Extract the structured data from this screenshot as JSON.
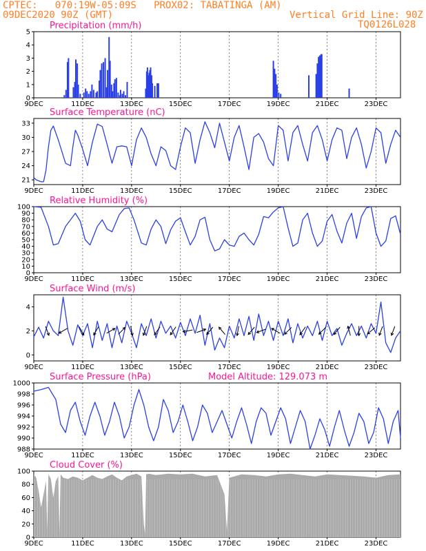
{
  "header": {
    "line1_left": "CPTEC:   070:19W-05:09S   PROX02: TABATINGA (AM)",
    "line2_left": "09DEC2020 90Z (GMT)",
    "line2_right": "Vertical Grid Line: 90Z",
    "line3_right": "TQ0126L028"
  },
  "colors": {
    "header": "#ff7f24",
    "title": "#ff1493",
    "line": "#2a3fe6",
    "bar": "#2a3fe6",
    "cloud": "#aaaaaa"
  },
  "x_tick_labels": [
    "9DEC",
    "11DEC",
    "13DEC",
    "15DEC",
    "17DEC",
    "19DEC",
    "21DEC",
    "23DEC"
  ],
  "chart_data": [
    {
      "type": "bar",
      "title": "Precipitation (mm/h)",
      "ylim": [
        0,
        5
      ],
      "yticks": [
        "0",
        "1",
        "2",
        "3",
        "4",
        "5"
      ],
      "x_days": [
        1.25,
        1.32,
        1.38,
        1.42,
        1.62,
        1.68,
        1.72,
        1.78,
        1.82,
        1.9,
        2.05,
        2.12,
        2.18,
        2.25,
        2.32,
        2.38,
        2.45,
        2.55,
        2.6,
        2.68,
        2.72,
        2.78,
        2.85,
        2.92,
        2.98,
        3.02,
        3.08,
        3.12,
        3.18,
        3.22,
        3.28,
        3.32,
        3.38,
        3.45,
        3.52,
        3.55,
        3.62,
        3.68,
        3.75,
        3.82,
        4.58,
        4.62,
        4.65,
        4.68,
        4.72,
        4.75,
        4.78,
        4.82,
        4.85,
        4.95,
        5.05,
        5.1,
        9.8,
        9.85,
        9.9,
        9.95,
        10.02,
        10.1,
        11.25,
        11.55,
        11.6,
        11.65,
        11.7,
        11.75,
        11.78,
        12.9
      ],
      "values": [
        0.2,
        0.6,
        2.7,
        3.0,
        0.8,
        1.2,
        2.9,
        2.6,
        1.0,
        0.3,
        0.4,
        0.7,
        0.5,
        0.3,
        0.5,
        1.0,
        0.6,
        0.4,
        0.5,
        1.3,
        2.1,
        2.6,
        2.7,
        3.0,
        0.8,
        2.1,
        4.6,
        2.8,
        1.0,
        0.5,
        1.1,
        1.4,
        1.5,
        0.4,
        0.2,
        0.6,
        0.3,
        0.5,
        0.2,
        1.2,
        0.7,
        2.0,
        2.3,
        1.7,
        1.9,
        2.1,
        2.3,
        1.7,
        1.1,
        0.9,
        1.1,
        1.1,
        2.8,
        2.2,
        1.8,
        1.0,
        0.4,
        0.3,
        1.7,
        1.8,
        2.6,
        3.1,
        3.2,
        3.3,
        3.3,
        0.7
      ]
    },
    {
      "type": "line",
      "title": "Surface Temperature (nC)",
      "ylim": [
        20,
        34
      ],
      "yticks": [
        "21",
        "24",
        "27",
        "30",
        "33"
      ],
      "x": [
        0,
        0.1,
        0.2,
        0.3,
        0.4,
        0.5,
        0.6,
        0.7,
        0.8,
        1.0,
        1.3,
        1.5,
        1.6,
        1.7,
        1.8,
        2.0,
        2.2,
        2.4,
        2.6,
        2.8,
        3.0,
        3.2,
        3.4,
        3.6,
        3.8,
        4.0,
        4.2,
        4.4,
        4.6,
        4.8,
        5.0,
        5.2,
        5.4,
        5.6,
        5.8,
        6.0,
        6.2,
        6.4,
        6.6,
        6.8,
        7.0,
        7.2,
        7.4,
        7.6,
        7.8,
        8.0,
        8.2,
        8.4,
        8.6,
        8.8,
        9.0,
        9.2,
        9.4,
        9.6,
        9.8,
        10.0,
        10.2,
        10.4,
        10.6,
        10.8,
        11.0,
        11.2,
        11.4,
        11.6,
        11.8,
        12.0,
        12.2,
        12.4,
        12.6,
        12.8,
        13.0,
        13.2,
        13.4,
        13.6,
        13.8,
        14.0,
        14.2,
        14.4,
        14.6,
        14.8,
        15.0
      ],
      "y": [
        21.5,
        21.0,
        20.8,
        20.6,
        20.6,
        23.0,
        28.0,
        31.5,
        32.4,
        29.5,
        24.5,
        24.0,
        28.0,
        31.5,
        30.5,
        27.5,
        24.0,
        29.0,
        32.8,
        32.3,
        28.5,
        24.5,
        28.0,
        28.2,
        28.0,
        24.0,
        29.5,
        32.0,
        30.0,
        26.5,
        24.0,
        28.0,
        27.2,
        24.0,
        23.2,
        28.0,
        32.0,
        31.0,
        24.5,
        29.5,
        33.3,
        31.0,
        27.8,
        33.0,
        29.0,
        25.0,
        30.0,
        32.5,
        28.0,
        23.2,
        30.0,
        30.8,
        29.0,
        25.5,
        24.0,
        32.5,
        31.5,
        25.0,
        31.0,
        32.5,
        28.5,
        25.0,
        31.0,
        32.5,
        29.5,
        25.0,
        29.5,
        32.0,
        31.5,
        25.5,
        30.0,
        32.0,
        28.5,
        23.5,
        27.0,
        32.0,
        31.0,
        24.5,
        28.5,
        31.5,
        30.0
      ]
    },
    {
      "type": "line",
      "title": "Relative Humidity (%)",
      "ylim": [
        0,
        100
      ],
      "yticks": [
        "0",
        "10",
        "20",
        "30",
        "40",
        "50",
        "60",
        "70",
        "80",
        "90",
        "100"
      ],
      "x": [
        0,
        0.3,
        0.6,
        0.8,
        1.0,
        1.3,
        1.5,
        1.7,
        1.9,
        2.1,
        2.3,
        2.6,
        2.8,
        3.0,
        3.2,
        3.5,
        3.7,
        3.9,
        4.1,
        4.4,
        4.6,
        4.8,
        5.0,
        5.2,
        5.4,
        5.6,
        5.8,
        6.0,
        6.2,
        6.4,
        6.6,
        6.8,
        7.0,
        7.2,
        7.4,
        7.6,
        7.8,
        8.0,
        8.2,
        8.4,
        8.6,
        8.8,
        9.0,
        9.2,
        9.4,
        9.6,
        9.8,
        10.0,
        10.2,
        10.4,
        10.6,
        10.8,
        11.0,
        11.2,
        11.4,
        11.6,
        11.8,
        12.0,
        12.2,
        12.4,
        12.6,
        12.8,
        13.0,
        13.2,
        13.4,
        13.6,
        13.8,
        14.0,
        14.2,
        14.4,
        14.6,
        14.8,
        15.0
      ],
      "y": [
        100,
        99,
        70,
        42,
        44,
        70,
        80,
        90,
        78,
        50,
        42,
        70,
        80,
        66,
        62,
        88,
        97,
        98,
        80,
        45,
        42,
        66,
        80,
        70,
        44,
        65,
        78,
        83,
        62,
        42,
        55,
        80,
        84,
        50,
        33,
        36,
        50,
        42,
        40,
        55,
        60,
        50,
        42,
        58,
        85,
        83,
        92,
        98,
        100,
        68,
        40,
        45,
        80,
        90,
        60,
        40,
        48,
        78,
        88,
        63,
        45,
        75,
        90,
        52,
        85,
        98,
        100,
        60,
        40,
        48,
        82,
        86,
        58
      ]
    },
    {
      "type": "line",
      "title": "Surface Wind (m/s)",
      "ylim": [
        -0.5,
        5
      ],
      "yticks": [
        "0",
        "2",
        "4"
      ],
      "x": [
        0,
        0.2,
        0.4,
        0.6,
        0.8,
        1.0,
        1.2,
        1.4,
        1.6,
        1.8,
        2.0,
        2.2,
        2.4,
        2.6,
        2.8,
        3.0,
        3.2,
        3.4,
        3.6,
        3.8,
        4.0,
        4.2,
        4.4,
        4.6,
        4.8,
        5.0,
        5.2,
        5.4,
        5.6,
        5.8,
        6.0,
        6.2,
        6.4,
        6.6,
        6.8,
        7.0,
        7.2,
        7.4,
        7.6,
        7.8,
        8.0,
        8.2,
        8.4,
        8.6,
        8.8,
        9.0,
        9.2,
        9.4,
        9.6,
        9.8,
        10.0,
        10.2,
        10.4,
        10.6,
        10.8,
        11.0,
        11.2,
        11.4,
        11.6,
        11.8,
        12.0,
        12.2,
        12.4,
        12.6,
        12.8,
        13.0,
        13.2,
        13.4,
        13.6,
        13.8,
        14.0,
        14.2,
        14.4,
        14.6,
        14.8,
        15.0
      ],
      "y": [
        1.5,
        2.3,
        1.4,
        2.8,
        2.0,
        1.6,
        4.8,
        2.0,
        0.8,
        2.5,
        1.6,
        2.6,
        0.6,
        2.8,
        1.2,
        2.6,
        0.6,
        2.4,
        1.0,
        2.8,
        1.8,
        0.6,
        2.6,
        1.6,
        3.0,
        1.4,
        2.8,
        1.8,
        2.4,
        1.4,
        2.7,
        1.6,
        3.0,
        1.8,
        3.3,
        0.8,
        2.6,
        0.4,
        1.4,
        0.6,
        2.4,
        1.4,
        3.0,
        1.6,
        3.2,
        1.2,
        3.4,
        1.6,
        2.8,
        1.2,
        2.8,
        1.6,
        3.0,
        1.0,
        2.6,
        1.4,
        2.4,
        1.6,
        2.8,
        1.2,
        2.8,
        1.6,
        2.2,
        0.8,
        1.8,
        2.6,
        1.6,
        2.4,
        1.4,
        2.6,
        1.8,
        4.4,
        1.0,
        0.2,
        1.4,
        2.0
      ],
      "arrow_x": [
        0.55,
        1.2,
        1.95,
        2.55,
        3.15,
        3.6,
        4.0,
        4.55,
        5.05,
        5.7,
        6.3,
        6.85,
        7.2,
        7.7,
        8.35,
        8.9,
        9.3,
        9.9,
        10.4,
        11.0,
        11.8,
        12.4,
        12.9,
        13.3,
        13.8,
        14.2,
        14.7
      ],
      "arrow_dir_deg": [
        160,
        240,
        150,
        210,
        60,
        45,
        170,
        200,
        215,
        215,
        260,
        70,
        220,
        320,
        190,
        220,
        250,
        300,
        225,
        215,
        225,
        220,
        345,
        180,
        230,
        200,
        200
      ]
    },
    {
      "type": "line",
      "title": "Surface Pressure (hPa)",
      "annotation": "Model Altitude: 129.073 m",
      "ylim": [
        988,
        1000
      ],
      "yticks": [
        "988",
        "990",
        "992",
        "994",
        "996",
        "998",
        "1000"
      ],
      "x": [
        0,
        0.3,
        0.6,
        0.9,
        1.1,
        1.3,
        1.5,
        1.7,
        1.9,
        2.1,
        2.3,
        2.5,
        2.7,
        2.9,
        3.1,
        3.3,
        3.5,
        3.7,
        3.9,
        4.1,
        4.3,
        4.5,
        4.7,
        4.9,
        5.1,
        5.3,
        5.5,
        5.7,
        5.9,
        6.1,
        6.3,
        6.5,
        6.7,
        6.9,
        7.1,
        7.3,
        7.5,
        7.7,
        7.9,
        8.1,
        8.3,
        8.5,
        8.7,
        8.9,
        9.1,
        9.3,
        9.5,
        9.7,
        9.9,
        10.1,
        10.3,
        10.5,
        10.7,
        10.9,
        11.1,
        11.3,
        11.5,
        11.7,
        11.9,
        12.1,
        12.3,
        12.5,
        12.7,
        12.9,
        13.1,
        13.3,
        13.5,
        13.7,
        13.9,
        14.1,
        14.3,
        14.5,
        14.7,
        14.9,
        15.0
      ],
      "y": [
        998.5,
        998.8,
        999.2,
        997.0,
        992.5,
        991.0,
        995.0,
        996.5,
        993.0,
        990.5,
        994.0,
        996.5,
        994.0,
        990.5,
        993.0,
        996.5,
        994.0,
        990.0,
        992.0,
        996.0,
        998.8,
        996.0,
        992.0,
        989.5,
        992.0,
        997.0,
        995.0,
        991.0,
        993.0,
        996.0,
        993.0,
        989.5,
        992.0,
        996.0,
        994.5,
        991.0,
        993.0,
        995.0,
        992.5,
        990.0,
        993.0,
        995.5,
        992.5,
        989.0,
        993.0,
        995.5,
        994.5,
        990.5,
        993.0,
        995.5,
        993.5,
        989.0,
        992.0,
        995.0,
        993.0,
        988.0,
        990.5,
        993.5,
        991.5,
        988.5,
        992.0,
        995.0,
        991.5,
        988.5,
        991.0,
        994.5,
        993.0,
        989.0,
        991.0,
        995.5,
        993.5,
        989.0,
        993.0,
        995.0,
        990.0
      ]
    },
    {
      "type": "area",
      "title": "Cloud Cover (%)",
      "ylim": [
        0,
        100
      ],
      "yticks": [
        "0",
        "20",
        "40",
        "60",
        "80",
        "100"
      ],
      "x": [
        0,
        0.1,
        0.2,
        0.3,
        0.4,
        0.5,
        0.55,
        0.6,
        0.7,
        0.8,
        0.9,
        1.0,
        1.05,
        1.1,
        1.2,
        1.4,
        1.6,
        1.8,
        2.0,
        2.2,
        2.4,
        2.6,
        2.8,
        3.0,
        3.2,
        3.4,
        3.6,
        3.8,
        4.0,
        4.2,
        4.4,
        4.5,
        4.55,
        4.6,
        4.7,
        5.0,
        5.5,
        6.0,
        6.5,
        7.0,
        7.5,
        7.8,
        7.9,
        8.0,
        8.5,
        9.0,
        9.5,
        10.0,
        10.5,
        11.0,
        11.5,
        12.0,
        12.5,
        13.0,
        13.5,
        14.0,
        14.5,
        15.0
      ],
      "y": [
        95,
        90,
        70,
        45,
        65,
        85,
        10,
        95,
        88,
        60,
        85,
        92,
        5,
        95,
        90,
        88,
        92,
        90,
        86,
        90,
        94,
        90,
        88,
        92,
        95,
        90,
        86,
        92,
        94,
        96,
        92,
        20,
        5,
        95,
        96,
        94,
        96,
        95,
        96,
        92,
        94,
        65,
        10,
        90,
        95,
        94,
        92,
        95,
        96,
        94,
        92,
        95,
        94,
        93,
        92,
        90,
        94,
        95
      ]
    }
  ]
}
